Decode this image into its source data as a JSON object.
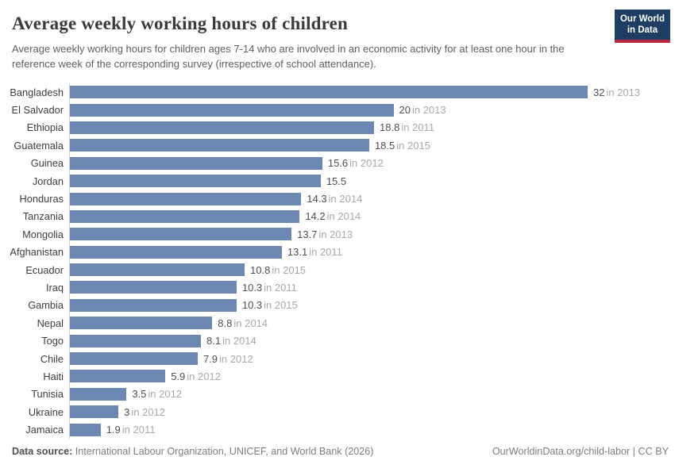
{
  "header": {
    "logo": {
      "line1": "Our World",
      "line2": "in Data"
    }
  },
  "chart_data": {
    "type": "bar",
    "orientation": "horizontal",
    "title": "Average weekly working hours of children",
    "subtitle": "Average weekly working hours for children ages 7-14 who are involved in an economic activity for at least one hour in the reference week of the corresponding survey (irrespective of school attendance).",
    "categories": [
      "Bangladesh",
      "El Salvador",
      "Ethiopia",
      "Guatemala",
      "Guinea",
      "Jordan",
      "Honduras",
      "Tanzania",
      "Mongolia",
      "Afghanistan",
      "Ecuador",
      "Iraq",
      "Gambia",
      "Nepal",
      "Togo",
      "Chile",
      "Haiti",
      "Tunisia",
      "Ukraine",
      "Jamaica"
    ],
    "values": [
      32,
      20,
      18.8,
      18.5,
      15.6,
      15.5,
      14.3,
      14.2,
      13.7,
      13.1,
      10.8,
      10.3,
      10.3,
      8.8,
      8.1,
      7.9,
      5.9,
      3.5,
      3,
      1.9
    ],
    "years": [
      "2013",
      "2013",
      "2011",
      "2015",
      "2012",
      null,
      "2014",
      "2014",
      "2013",
      "2011",
      "2015",
      "2011",
      "2015",
      "2014",
      "2014",
      "2012",
      "2012",
      "2012",
      "2012",
      "2011"
    ],
    "year_prefix": "in",
    "xlim": [
      0,
      32
    ],
    "grid": false,
    "legend": false,
    "bar_color": "#6d87b3",
    "axis_line_color": "#cfcfcf"
  },
  "footer": {
    "source_label": "Data source:",
    "source_text": "International Labour Organization, UNICEF, and World Bank (2026)",
    "link": "OurWorldinData.org/child-labor",
    "divider": "|",
    "license": "CC BY"
  },
  "colors": {
    "logo_background": "#1d3d63",
    "logo_stripe": "#b52b40",
    "bar": "#6d87b3"
  }
}
